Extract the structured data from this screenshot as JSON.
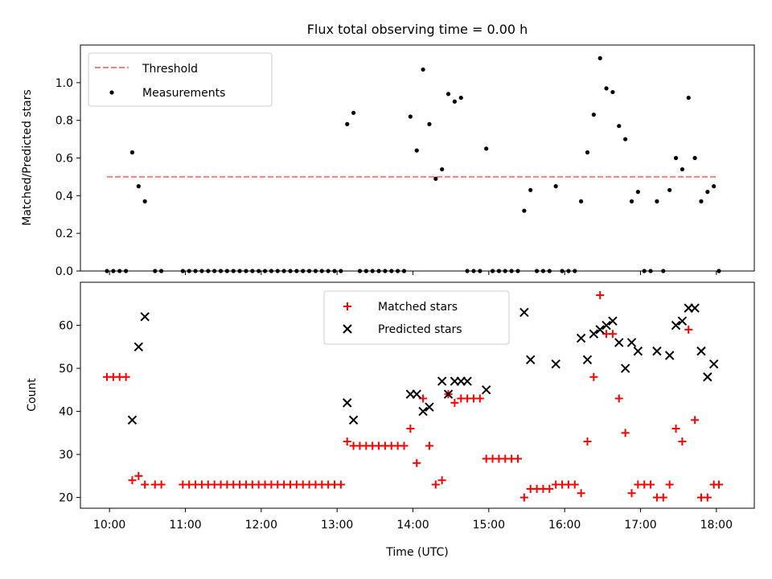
{
  "title": "Flux total observing time = 0.00 h",
  "colors": {
    "threshold": "#ff7f7f",
    "measurements": "#000000",
    "matched": "#ff0000",
    "predicted": "#000000"
  },
  "chart_data": [
    {
      "type": "scatter",
      "ylabel": "Matched/Predicted stars",
      "xlim": [
        "09:37",
        "18:30"
      ],
      "ylim": [
        0,
        1.2
      ],
      "yticks": [
        0.0,
        0.2,
        0.4,
        0.6,
        0.8,
        1.0
      ],
      "legend": {
        "placement": "top-left"
      },
      "threshold": {
        "name": "Threshold",
        "value": 0.5,
        "x_range": [
          "09:58",
          "18:00"
        ]
      },
      "series": [
        {
          "name": "Measurements",
          "x": [
            "09:58",
            "10:03",
            "10:08",
            "10:13",
            "10:18",
            "10:23",
            "10:28",
            "10:36",
            "10:41",
            "10:58",
            "11:03",
            "11:08",
            "11:13",
            "11:18",
            "11:23",
            "11:28",
            "11:33",
            "11:38",
            "11:43",
            "11:48",
            "11:53",
            "11:58",
            "12:03",
            "12:08",
            "12:13",
            "12:18",
            "12:23",
            "12:28",
            "12:33",
            "12:38",
            "12:43",
            "12:48",
            "12:53",
            "12:58",
            "13:03",
            "13:08",
            "13:13",
            "13:18",
            "13:23",
            "13:28",
            "13:33",
            "13:38",
            "13:43",
            "13:48",
            "13:53",
            "13:58",
            "14:03",
            "14:08",
            "14:13",
            "14:18",
            "14:23",
            "14:28",
            "14:33",
            "14:38",
            "14:43",
            "14:48",
            "14:53",
            "14:58",
            "15:03",
            "15:08",
            "15:13",
            "15:18",
            "15:23",
            "15:28",
            "15:33",
            "15:38",
            "15:43",
            "15:48",
            "15:53",
            "15:58",
            "16:03",
            "16:08",
            "16:13",
            "16:18",
            "16:23",
            "16:28",
            "16:33",
            "16:38",
            "16:43",
            "16:48",
            "16:53",
            "16:58",
            "17:03",
            "17:08",
            "17:13",
            "17:18",
            "17:23",
            "17:28",
            "17:33",
            "17:38",
            "17:43",
            "17:48",
            "17:53",
            "17:58",
            "18:02"
          ],
          "y": [
            0,
            0,
            0,
            0,
            0.63,
            0.45,
            0.37,
            0,
            0,
            0,
            0,
            0,
            0,
            0,
            0,
            0,
            0,
            0,
            0,
            0,
            0,
            0,
            0,
            0,
            0,
            0,
            0,
            0,
            0,
            0,
            0,
            0,
            0,
            0,
            0,
            0.78,
            0.84,
            0,
            0,
            0,
            0,
            0,
            0,
            0,
            0,
            0.82,
            0.64,
            1.07,
            0.78,
            0.49,
            0.54,
            0.94,
            0.9,
            0.92,
            0,
            0,
            0,
            0.65,
            0,
            0,
            0,
            0,
            0,
            0.32,
            0.43,
            0,
            0,
            0,
            0.45,
            0,
            0,
            0,
            0.37,
            0.63,
            0.83,
            1.13,
            0.97,
            0.95,
            0.77,
            0.7,
            0.37,
            0.42,
            0,
            0,
            0.37,
            0,
            0.43,
            0.6,
            0.54,
            0.92,
            0.6,
            0.37,
            0.42,
            0.45,
            0
          ]
        }
      ]
    },
    {
      "type": "scatter",
      "xlabel": "Time (UTC)",
      "ylabel": "Count",
      "xlim": [
        "09:37",
        "18:30"
      ],
      "ylim": [
        17.5,
        70
      ],
      "xticks": [
        "10:00",
        "11:00",
        "12:00",
        "13:00",
        "14:00",
        "15:00",
        "16:00",
        "17:00",
        "18:00"
      ],
      "yticks": [
        20,
        30,
        40,
        50,
        60
      ],
      "legend": {
        "placement": "top-center"
      },
      "series": [
        {
          "name": "Matched stars",
          "marker": "plus",
          "x": [
            "09:58",
            "10:03",
            "10:08",
            "10:13",
            "10:18",
            "10:23",
            "10:28",
            "10:36",
            "10:41",
            "10:58",
            "11:03",
            "11:08",
            "11:13",
            "11:18",
            "11:23",
            "11:28",
            "11:33",
            "11:38",
            "11:43",
            "11:48",
            "11:53",
            "11:58",
            "12:03",
            "12:08",
            "12:13",
            "12:18",
            "12:23",
            "12:28",
            "12:33",
            "12:38",
            "12:43",
            "12:48",
            "12:53",
            "12:58",
            "13:03",
            "13:08",
            "13:13",
            "13:18",
            "13:23",
            "13:28",
            "13:33",
            "13:38",
            "13:43",
            "13:48",
            "13:53",
            "13:58",
            "14:03",
            "14:08",
            "14:13",
            "14:18",
            "14:23",
            "14:28",
            "14:33",
            "14:38",
            "14:43",
            "14:48",
            "14:53",
            "14:58",
            "15:03",
            "15:08",
            "15:13",
            "15:18",
            "15:23",
            "15:28",
            "15:33",
            "15:38",
            "15:43",
            "15:48",
            "15:53",
            "15:58",
            "16:03",
            "16:08",
            "16:13",
            "16:18",
            "16:23",
            "16:28",
            "16:33",
            "16:38",
            "16:43",
            "16:48",
            "16:53",
            "16:58",
            "17:03",
            "17:08",
            "17:13",
            "17:18",
            "17:23",
            "17:28",
            "17:33",
            "17:38",
            "17:43",
            "17:48",
            "17:53",
            "17:58",
            "18:02"
          ],
          "y": [
            48,
            48,
            48,
            48,
            24,
            25,
            23,
            23,
            23,
            23,
            23,
            23,
            23,
            23,
            23,
            23,
            23,
            23,
            23,
            23,
            23,
            23,
            23,
            23,
            23,
            23,
            23,
            23,
            23,
            23,
            23,
            23,
            23,
            23,
            23,
            33,
            32,
            32,
            32,
            32,
            32,
            32,
            32,
            32,
            32,
            36,
            28,
            43,
            32,
            23,
            24,
            44,
            42,
            43,
            43,
            43,
            43,
            29,
            29,
            29,
            29,
            29,
            29,
            20,
            22,
            22,
            22,
            22,
            23,
            23,
            23,
            23,
            21,
            33,
            48,
            67,
            58,
            58,
            43,
            35,
            21,
            23,
            23,
            23,
            20,
            20,
            23,
            36,
            33,
            59,
            38,
            20,
            20,
            23,
            23
          ]
        },
        {
          "name": "Predicted stars",
          "marker": "x",
          "x": [
            "10:18",
            "10:23",
            "10:28",
            "13:08",
            "13:13",
            "13:58",
            "14:03",
            "14:08",
            "14:13",
            "14:23",
            "14:28",
            "14:33",
            "14:38",
            "14:43",
            "14:58",
            "15:28",
            "15:33",
            "15:53",
            "16:13",
            "16:18",
            "16:23",
            "16:28",
            "16:33",
            "16:38",
            "16:43",
            "16:48",
            "16:53",
            "16:58",
            "17:13",
            "17:23",
            "17:28",
            "17:33",
            "17:38",
            "17:43",
            "17:48",
            "17:53",
            "17:58"
          ],
          "y": [
            38,
            55,
            62,
            42,
            38,
            44,
            44,
            40,
            41,
            47,
            44,
            47,
            47,
            47,
            45,
            63,
            52,
            51,
            57,
            52,
            58,
            59,
            60,
            61,
            56,
            50,
            56,
            54,
            54,
            53,
            60,
            61,
            64,
            64,
            54,
            48,
            51
          ]
        }
      ]
    }
  ]
}
